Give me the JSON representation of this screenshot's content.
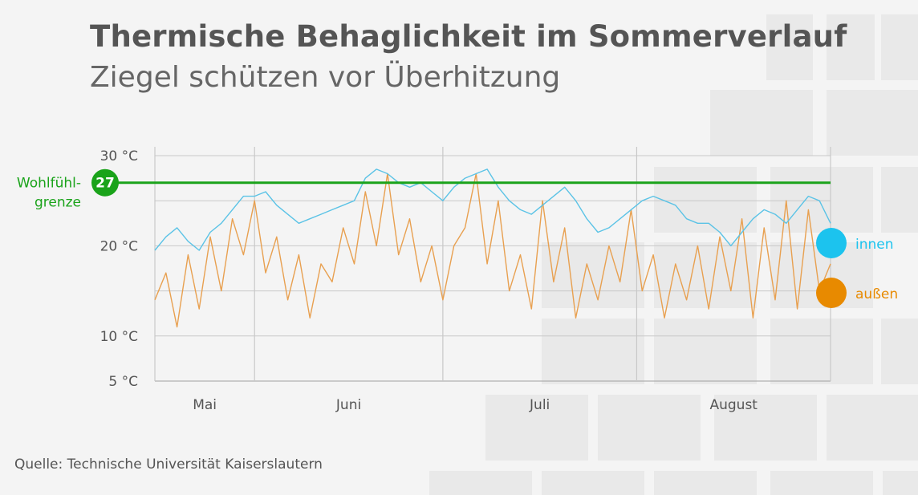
{
  "title": "Thermische Behaglichkeit im Sommerverlauf",
  "subtitle": "Ziegel schützen vor Überhitzung",
  "source": "Quelle: Technische Universität Kaiserslautern",
  "colors": {
    "innen": "#5bc3e6",
    "aussen": "#e8a050",
    "innen_dot": "#1cc3ee",
    "aussen_dot": "#e88a00",
    "grenze": "#1aa31a",
    "grid": "#c8c8c8",
    "axis_text": "#555555"
  },
  "chart_data": {
    "type": "line",
    "title": "Thermische Behaglichkeit im Sommerverlauf",
    "subtitle": "Ziegel schützen vor Überhitzung",
    "x_unit": "day",
    "xlim": [
      0,
      122
    ],
    "ylim": [
      5,
      30
    ],
    "y_ticks": [
      {
        "value": 30,
        "label": "30 °C"
      },
      {
        "value": 20,
        "label": "20 °C"
      },
      {
        "value": 10,
        "label": "10 °C"
      },
      {
        "value": 5,
        "label": "5 °C"
      }
    ],
    "months": [
      {
        "label": "Mai",
        "start": 0,
        "end": 18
      },
      {
        "label": "Juni",
        "start": 18,
        "end": 52
      },
      {
        "label": "Juli",
        "start": 52,
        "end": 87
      },
      {
        "label": "August",
        "start": 87,
        "end": 122
      }
    ],
    "grid": true,
    "reference_line": {
      "value": 27,
      "label_line1": "Wohlfühl-",
      "label_line2": "grenze",
      "badge": "27"
    },
    "legend": [
      {
        "name": "innen",
        "series": "innen"
      },
      {
        "name": "außen",
        "series": "aussen"
      }
    ],
    "series": [
      {
        "name": "innen",
        "x": [
          0,
          2,
          4,
          6,
          8,
          10,
          12,
          14,
          16,
          18,
          20,
          22,
          24,
          26,
          28,
          30,
          32,
          34,
          36,
          38,
          40,
          42,
          44,
          46,
          48,
          50,
          52,
          54,
          56,
          58,
          60,
          62,
          64,
          66,
          68,
          70,
          72,
          74,
          76,
          78,
          80,
          82,
          84,
          86,
          88,
          90,
          92,
          94,
          96,
          98,
          100,
          102,
          104,
          106,
          108,
          110,
          112,
          114,
          116,
          118,
          120,
          122
        ],
        "y": [
          19.5,
          21,
          22,
          20.5,
          19.5,
          21.5,
          22.5,
          24,
          25.5,
          25.5,
          26,
          24.5,
          23.5,
          22.5,
          23,
          23.5,
          24,
          24.5,
          25,
          27.5,
          28.5,
          28,
          27,
          26.5,
          27,
          26,
          25,
          26.5,
          27.5,
          28,
          28.5,
          26.5,
          25,
          24,
          23.5,
          24.5,
          25.5,
          26.5,
          25,
          23,
          21.5,
          22,
          23,
          24,
          25,
          25.5,
          25,
          24.5,
          23,
          22.5,
          22.5,
          21.5,
          20,
          21.5,
          23,
          24,
          23.5,
          22.5,
          24,
          25.5,
          25,
          22.5
        ]
      },
      {
        "name": "außen",
        "x": [
          0,
          2,
          4,
          6,
          8,
          10,
          12,
          14,
          16,
          18,
          20,
          22,
          24,
          26,
          28,
          30,
          32,
          34,
          36,
          38,
          40,
          42,
          44,
          46,
          48,
          50,
          52,
          54,
          56,
          58,
          60,
          62,
          64,
          66,
          68,
          70,
          72,
          74,
          76,
          78,
          80,
          82,
          84,
          86,
          88,
          90,
          92,
          94,
          96,
          98,
          100,
          102,
          104,
          106,
          108,
          110,
          112,
          114,
          116,
          118,
          120,
          122
        ],
        "y": [
          14,
          17,
          11,
          19,
          13,
          21,
          15,
          23,
          19,
          25,
          17,
          21,
          14,
          19,
          12,
          18,
          16,
          22,
          18,
          26,
          20,
          28,
          19,
          23,
          16,
          20,
          14,
          20,
          22,
          28,
          18,
          25,
          15,
          19,
          13,
          25,
          16,
          22,
          12,
          18,
          14,
          20,
          16,
          24,
          15,
          19,
          12,
          18,
          14,
          20,
          13,
          21,
          15,
          23,
          12,
          22,
          14,
          25,
          13,
          24,
          15,
          18
        ]
      }
    ]
  }
}
